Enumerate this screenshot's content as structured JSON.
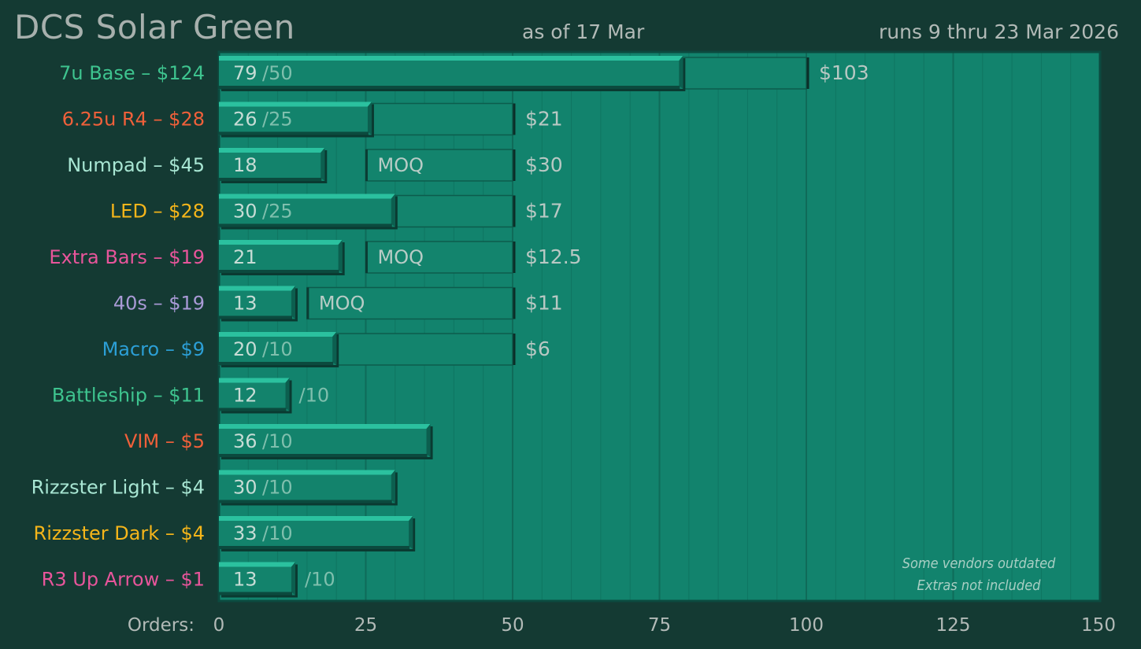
{
  "header": {
    "title": "DCS Solar Green",
    "as_of": "as of 17 Mar",
    "runs": "runs 9 thru 23 Mar 2026"
  },
  "chart_data": {
    "type": "bar",
    "orientation": "horizontal",
    "xlabel": "Orders:",
    "xlim": [
      0,
      150
    ],
    "x_ticks": [
      0,
      25,
      50,
      75,
      100,
      125,
      150
    ],
    "grid": true,
    "annotations": [
      "Some vendors outdated",
      "Extras not included"
    ],
    "colors": {
      "background": "#143a33",
      "plot": "#12836d",
      "bar": "#13836c",
      "bar_top": "#2bc19f",
      "grid": "#0f6b59"
    },
    "categories": [
      {
        "label": "7u Base – $124",
        "color": "#3ec48f",
        "orders": 79,
        "target": 50,
        "target_text": "/50",
        "segments": [
          [
            0,
            50
          ],
          [
            50,
            100
          ]
        ],
        "price": "$103"
      },
      {
        "label": "6.25u R4 – $28",
        "color": "#f0603a",
        "orders": 26,
        "target": 25,
        "target_text": "/25",
        "segments": [
          [
            0,
            50
          ]
        ],
        "price": "$21"
      },
      {
        "label": "Numpad – $45",
        "color": "#a8e6d3",
        "orders": 18,
        "target": 25,
        "moq": "MOQ",
        "segments": [
          [
            25,
            50
          ]
        ],
        "price": "$30"
      },
      {
        "label": "LED – $28",
        "color": "#f5b51a",
        "orders": 30,
        "target": 25,
        "target_text": "/25",
        "segments": [
          [
            0,
            50
          ]
        ],
        "price": "$17"
      },
      {
        "label": "Extra Bars – $19",
        "color": "#e8559b",
        "orders": 21,
        "target": 25,
        "moq": "MOQ",
        "segments": [
          [
            25,
            50
          ]
        ],
        "price": "$12.5"
      },
      {
        "label": "40s – $19",
        "color": "#a99ad6",
        "orders": 13,
        "target": 15,
        "moq": "MOQ",
        "segments": [
          [
            15,
            50
          ]
        ],
        "price": "$11"
      },
      {
        "label": "Macro – $9",
        "color": "#2c9fd6",
        "orders": 20,
        "target": 10,
        "target_text": "/10",
        "segments": [
          [
            0,
            50
          ]
        ],
        "price": "$6"
      },
      {
        "label": "Battleship – $11",
        "color": "#3ec48f",
        "orders": 12,
        "target": 10,
        "target_text": "/10",
        "segments": [],
        "price": ""
      },
      {
        "label": "VIM – $5",
        "color": "#f0603a",
        "orders": 36,
        "target": 10,
        "target_text": "/10",
        "segments": [],
        "price": ""
      },
      {
        "label": "Rizzster Light – $4",
        "color": "#a8e6d3",
        "orders": 30,
        "target": 10,
        "target_text": "/10",
        "segments": [],
        "price": ""
      },
      {
        "label": "Rizzster Dark – $4",
        "color": "#f5b51a",
        "orders": 33,
        "target": 10,
        "target_text": "/10",
        "segments": [],
        "price": ""
      },
      {
        "label": "R3 Up Arrow – $1",
        "color": "#e8559b",
        "orders": 13,
        "target": 10,
        "target_text": "/10",
        "segments": [],
        "price": ""
      }
    ]
  }
}
